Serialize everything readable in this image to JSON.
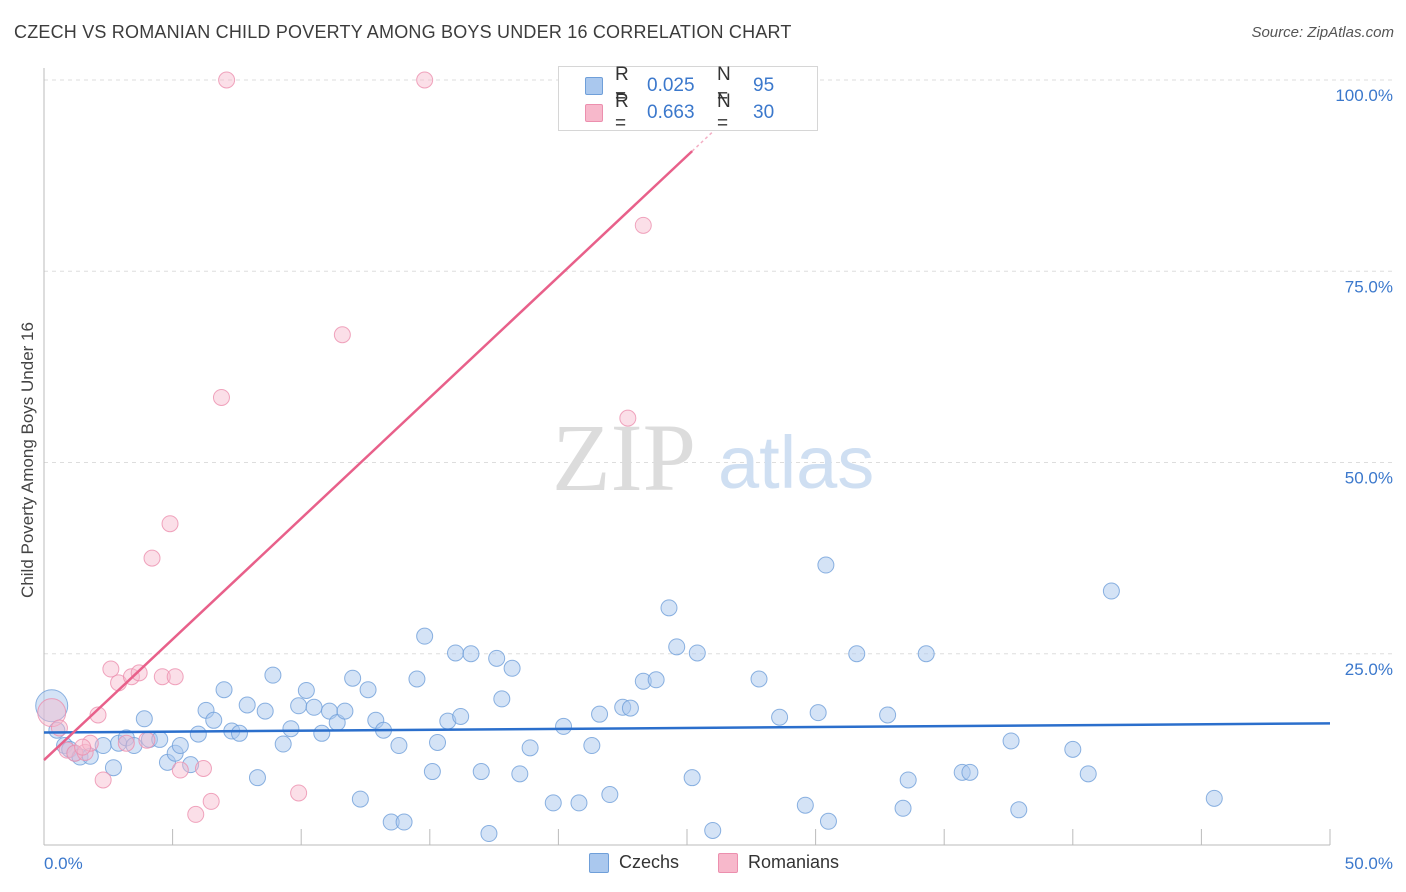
{
  "header": {
    "title": "CZECH VS ROMANIAN CHILD POVERTY AMONG BOYS UNDER 16 CORRELATION CHART",
    "source": "Source: ZipAtlas.com"
  },
  "watermark": {
    "zip": "ZIP",
    "atlas": "atlas"
  },
  "legend_top": {
    "r_label": "R =",
    "n_label": "N =",
    "czech": {
      "r": "0.025",
      "n": "95"
    },
    "romanian": {
      "r": "0.663",
      "n": "30"
    }
  },
  "legend_bottom": {
    "czech": "Czechs",
    "romanian": "Romanians"
  },
  "colors": {
    "czech_fill": "#aac8ee",
    "czech_stroke": "#6f9fd9",
    "czech_line": "#2b6fcc",
    "romanian_fill": "#f7b8cb",
    "romanian_stroke": "#ec8fae",
    "romanian_line": "#e8608a",
    "tick_text": "#3b78cc",
    "grid": "#dddddd"
  },
  "chart_data": {
    "type": "scatter",
    "title": "CZECH VS ROMANIAN CHILD POVERTY AMONG BOYS UNDER 16 CORRELATION CHART",
    "xlabel": "",
    "ylabel": "Child Poverty Among Boys Under 16",
    "xlim": [
      0,
      50
    ],
    "ylim": [
      0,
      100
    ],
    "x_tick_labels": [
      "0.0%",
      "50.0%"
    ],
    "y_tick_labels": [
      "25.0%",
      "50.0%",
      "75.0%",
      "100.0%"
    ],
    "y_ticks": [
      25,
      50,
      75,
      100
    ],
    "grid": true,
    "legend_position": "top-center",
    "series": [
      {
        "name": "Czechs",
        "trend": {
          "x": [
            0,
            50
          ],
          "y": [
            14.7,
            15.9
          ]
        },
        "points": [
          {
            "x": 0.3,
            "y": 18.2,
            "big": true
          },
          {
            "x": 0.5,
            "y": 15.0
          },
          {
            "x": 0.8,
            "y": 13.0
          },
          {
            "x": 1.0,
            "y": 12.5
          },
          {
            "x": 1.2,
            "y": 12.0
          },
          {
            "x": 1.4,
            "y": 11.5
          },
          {
            "x": 1.8,
            "y": 11.6
          },
          {
            "x": 2.3,
            "y": 13.0
          },
          {
            "x": 2.7,
            "y": 10.1
          },
          {
            "x": 2.9,
            "y": 13.3
          },
          {
            "x": 3.2,
            "y": 14.0
          },
          {
            "x": 3.5,
            "y": 13.0
          },
          {
            "x": 3.9,
            "y": 16.5
          },
          {
            "x": 4.1,
            "y": 13.8
          },
          {
            "x": 4.5,
            "y": 13.8
          },
          {
            "x": 4.8,
            "y": 10.8
          },
          {
            "x": 5.1,
            "y": 12.0
          },
          {
            "x": 5.3,
            "y": 13.0
          },
          {
            "x": 5.7,
            "y": 10.5
          },
          {
            "x": 6.0,
            "y": 14.5
          },
          {
            "x": 6.3,
            "y": 17.6
          },
          {
            "x": 6.6,
            "y": 16.3
          },
          {
            "x": 7.0,
            "y": 20.3
          },
          {
            "x": 7.3,
            "y": 14.9
          },
          {
            "x": 7.6,
            "y": 14.6
          },
          {
            "x": 7.9,
            "y": 18.3
          },
          {
            "x": 8.3,
            "y": 8.8
          },
          {
            "x": 8.6,
            "y": 17.5
          },
          {
            "x": 8.9,
            "y": 22.2
          },
          {
            "x": 9.3,
            "y": 13.2
          },
          {
            "x": 9.6,
            "y": 15.2
          },
          {
            "x": 9.9,
            "y": 18.2
          },
          {
            "x": 10.2,
            "y": 20.2
          },
          {
            "x": 10.5,
            "y": 18.0
          },
          {
            "x": 10.8,
            "y": 14.6
          },
          {
            "x": 11.1,
            "y": 17.5
          },
          {
            "x": 11.4,
            "y": 16.0
          },
          {
            "x": 11.7,
            "y": 17.5
          },
          {
            "x": 12.0,
            "y": 21.8
          },
          {
            "x": 12.3,
            "y": 6.0
          },
          {
            "x": 12.6,
            "y": 20.3
          },
          {
            "x": 12.9,
            "y": 16.3
          },
          {
            "x": 13.2,
            "y": 15.0
          },
          {
            "x": 13.5,
            "y": 3.0
          },
          {
            "x": 13.8,
            "y": 13.0
          },
          {
            "x": 14.0,
            "y": 3.0
          },
          {
            "x": 14.5,
            "y": 21.7
          },
          {
            "x": 14.8,
            "y": 27.3
          },
          {
            "x": 15.1,
            "y": 9.6
          },
          {
            "x": 15.3,
            "y": 13.4
          },
          {
            "x": 15.7,
            "y": 16.2
          },
          {
            "x": 16.0,
            "y": 25.1
          },
          {
            "x": 16.2,
            "y": 16.8
          },
          {
            "x": 16.6,
            "y": 25.0
          },
          {
            "x": 17.0,
            "y": 9.6
          },
          {
            "x": 17.3,
            "y": 1.5
          },
          {
            "x": 17.6,
            "y": 24.4
          },
          {
            "x": 17.8,
            "y": 19.1
          },
          {
            "x": 18.2,
            "y": 23.1
          },
          {
            "x": 18.5,
            "y": 9.3
          },
          {
            "x": 18.9,
            "y": 12.7
          },
          {
            "x": 19.8,
            "y": 5.5
          },
          {
            "x": 20.2,
            "y": 15.5
          },
          {
            "x": 20.8,
            "y": 5.5
          },
          {
            "x": 21.3,
            "y": 13.0
          },
          {
            "x": 21.6,
            "y": 17.1
          },
          {
            "x": 22.0,
            "y": 6.6
          },
          {
            "x": 22.5,
            "y": 18.0
          },
          {
            "x": 22.8,
            "y": 17.9
          },
          {
            "x": 23.3,
            "y": 21.4
          },
          {
            "x": 23.8,
            "y": 21.6
          },
          {
            "x": 24.3,
            "y": 31.0
          },
          {
            "x": 24.6,
            "y": 25.9
          },
          {
            "x": 25.2,
            "y": 8.8
          },
          {
            "x": 25.4,
            "y": 25.1
          },
          {
            "x": 26.0,
            "y": 1.9
          },
          {
            "x": 27.8,
            "y": 21.7
          },
          {
            "x": 28.6,
            "y": 16.7
          },
          {
            "x": 29.6,
            "y": 5.2
          },
          {
            "x": 30.1,
            "y": 17.3
          },
          {
            "x": 30.4,
            "y": 36.6
          },
          {
            "x": 30.5,
            "y": 3.1
          },
          {
            "x": 31.6,
            "y": 25.0
          },
          {
            "x": 32.8,
            "y": 17.0
          },
          {
            "x": 33.4,
            "y": 4.8
          },
          {
            "x": 33.6,
            "y": 8.5
          },
          {
            "x": 34.3,
            "y": 25.0
          },
          {
            "x": 35.7,
            "y": 9.5
          },
          {
            "x": 36.0,
            "y": 9.5
          },
          {
            "x": 37.6,
            "y": 13.6
          },
          {
            "x": 37.9,
            "y": 4.6
          },
          {
            "x": 40.0,
            "y": 12.5
          },
          {
            "x": 40.6,
            "y": 9.3
          },
          {
            "x": 41.5,
            "y": 33.2
          },
          {
            "x": 45.5,
            "y": 6.1
          }
        ]
      },
      {
        "name": "Romanians",
        "trend": {
          "x": [
            0,
            25.2
          ],
          "y": [
            11.1,
            90.7
          ]
        },
        "points": [
          {
            "x": 0.3,
            "y": 17.3,
            "big": true
          },
          {
            "x": 0.6,
            "y": 15.3
          },
          {
            "x": 0.9,
            "y": 12.4
          },
          {
            "x": 1.2,
            "y": 12.0
          },
          {
            "x": 1.6,
            "y": 12.1
          },
          {
            "x": 1.8,
            "y": 13.3
          },
          {
            "x": 2.1,
            "y": 17.0
          },
          {
            "x": 2.3,
            "y": 8.5
          },
          {
            "x": 2.6,
            "y": 23.0
          },
          {
            "x": 2.9,
            "y": 21.2
          },
          {
            "x": 3.2,
            "y": 13.3
          },
          {
            "x": 3.4,
            "y": 22.0
          },
          {
            "x": 3.7,
            "y": 22.5
          },
          {
            "x": 4.0,
            "y": 13.7
          },
          {
            "x": 4.2,
            "y": 37.5
          },
          {
            "x": 4.6,
            "y": 22.0
          },
          {
            "x": 4.9,
            "y": 42.0
          },
          {
            "x": 5.1,
            "y": 22.0
          },
          {
            "x": 5.3,
            "y": 9.8
          },
          {
            "x": 5.9,
            "y": 4.0
          },
          {
            "x": 6.2,
            "y": 10.0
          },
          {
            "x": 6.5,
            "y": 5.7
          },
          {
            "x": 6.9,
            "y": 58.5
          },
          {
            "x": 7.1,
            "y": 100.0
          },
          {
            "x": 9.9,
            "y": 6.8
          },
          {
            "x": 11.6,
            "y": 66.7
          },
          {
            "x": 14.8,
            "y": 100.0
          },
          {
            "x": 22.7,
            "y": 55.8
          },
          {
            "x": 23.3,
            "y": 81.0
          },
          {
            "x": 1.5,
            "y": 12.8
          }
        ]
      }
    ]
  }
}
